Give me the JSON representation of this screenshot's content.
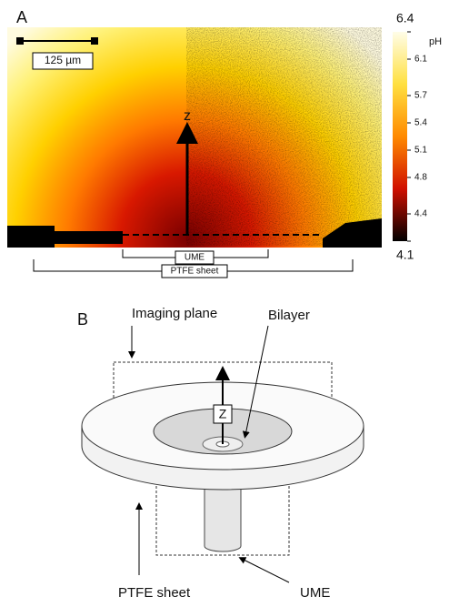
{
  "panel_a": {
    "label": "A",
    "scale_bar": "125 µm",
    "axis_label": "z",
    "ume": "UME",
    "ptfe": "PTFE sheet",
    "colorbar": {
      "label": "pH",
      "lim": [
        4.1,
        6.4
      ],
      "ticks": [
        6.4,
        6.1,
        5.7,
        5.4,
        5.1,
        4.8,
        4.4,
        4.1
      ]
    }
  },
  "panel_b": {
    "label": "B",
    "imaging_plane": "Imaging plane",
    "bilayer": "Bilayer",
    "axis_label": "Z",
    "ptfe": "PTFE sheet",
    "ume": "UME"
  }
}
